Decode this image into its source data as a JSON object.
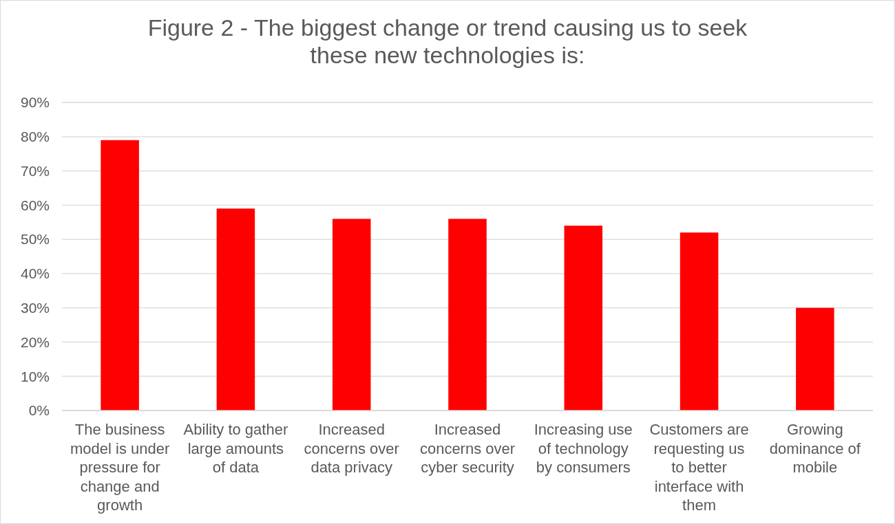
{
  "chart_data": {
    "type": "bar",
    "title": "Figure 2 - The biggest change or trend causing us to seek these new technologies is:",
    "categories": [
      "The business model is under pressure for change and growth",
      "Ability to gather large amounts of data",
      "Increased concerns over data privacy",
      "Increased concerns over cyber security",
      "Increasing use of technology by consumers",
      "Customers are requesting us to better interface with them",
      "Growing dominance of mobile"
    ],
    "values": [
      79,
      59,
      56,
      56,
      54,
      52,
      30
    ],
    "color": "#ff0000",
    "ylim": [
      0,
      90
    ],
    "yticks": [
      {
        "value": 0,
        "label": "0%"
      },
      {
        "value": 10,
        "label": "10%"
      },
      {
        "value": 20,
        "label": "20%"
      },
      {
        "value": 30,
        "label": "30%"
      },
      {
        "value": 40,
        "label": "40%"
      },
      {
        "value": 50,
        "label": "50%"
      },
      {
        "value": 60,
        "label": "60%"
      },
      {
        "value": 70,
        "label": "70%"
      },
      {
        "value": 80,
        "label": "80%"
      },
      {
        "value": 90,
        "label": "90%"
      }
    ],
    "grid": "y"
  }
}
